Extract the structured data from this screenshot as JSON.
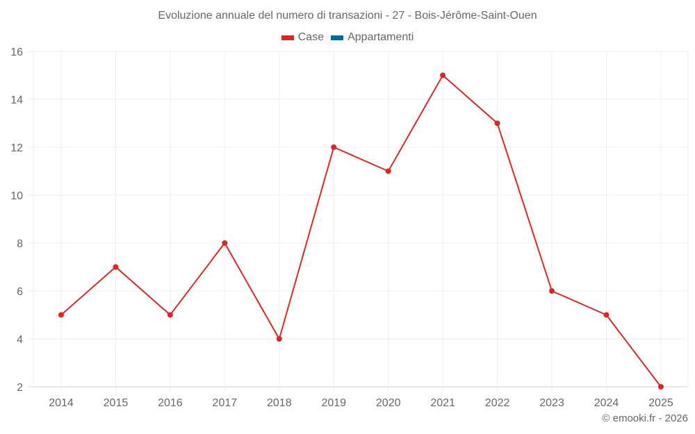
{
  "title": "Evoluzione annuale del numero di transazioni - 27 - Bois-Jérôme-Saint-Ouen",
  "legend": [
    {
      "label": "Case",
      "color": "#dc2626"
    },
    {
      "label": "Appartamenti",
      "color": "#0369a1"
    }
  ],
  "credit": "© emooki.fr - 2026",
  "chart_data": {
    "type": "line",
    "title": "Evoluzione annuale del numero di transazioni - 27 - Bois-Jérôme-Saint-Ouen",
    "xlabel": "",
    "ylabel": "",
    "categories": [
      "2014",
      "2015",
      "2016",
      "2017",
      "2018",
      "2019",
      "2020",
      "2021",
      "2022",
      "2023",
      "2024",
      "2025"
    ],
    "series": [
      {
        "name": "Case",
        "color": "#dc2626",
        "values": [
          5,
          7,
          5,
          8,
          4,
          12,
          11,
          15,
          13,
          6,
          5,
          2
        ]
      },
      {
        "name": "Appartamenti",
        "color": "#0369a1",
        "values": []
      }
    ],
    "ylim": [
      2,
      16
    ],
    "yticks": [
      2,
      4,
      6,
      8,
      10,
      12,
      14,
      16
    ],
    "grid": true,
    "legend_position": "top"
  }
}
